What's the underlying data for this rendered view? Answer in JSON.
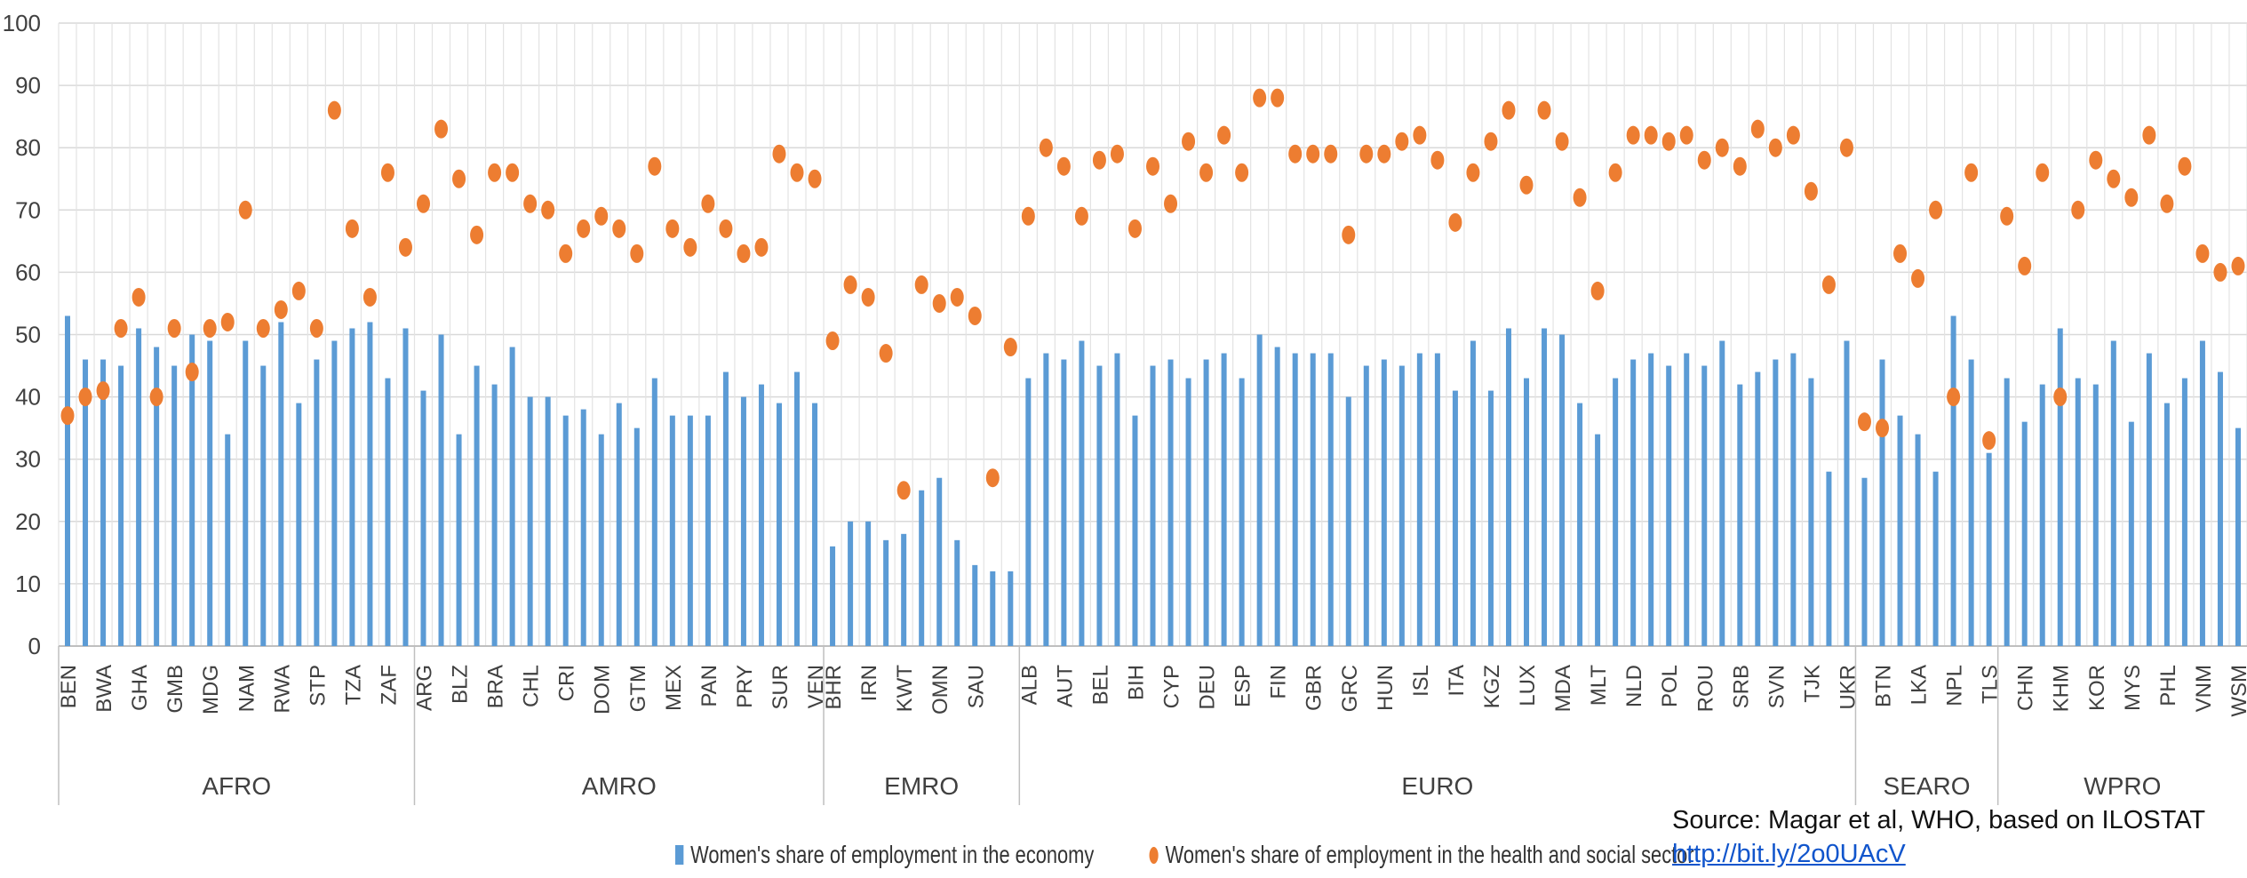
{
  "chart_data": {
    "type": "bar",
    "y_axis": {
      "ylim": [
        0,
        100
      ],
      "ticks": [
        "0",
        "10",
        "20",
        "30",
        "40",
        "50",
        "60",
        "70",
        "80",
        "90",
        "100"
      ],
      "grid": true
    },
    "groups": [
      {
        "name": "AFRO",
        "countries": [
          "BEN",
          "",
          "BWA",
          "",
          "GHA",
          "",
          "GMB",
          "",
          "MDG",
          "",
          "NAM",
          "",
          "RWA",
          "",
          "STP",
          "",
          "TZA",
          "",
          "ZAF",
          ""
        ],
        "economy": [
          53,
          46,
          46,
          45,
          51,
          48,
          45,
          50,
          49,
          34,
          49,
          45,
          52,
          39,
          46,
          49,
          51,
          52,
          43,
          51
        ],
        "health": [
          37,
          40,
          41,
          51,
          56,
          40,
          51,
          44,
          51,
          52,
          70,
          51,
          54,
          57,
          51,
          86,
          67,
          56,
          76,
          64
        ]
      },
      {
        "name": "AMRO",
        "countries": [
          "ARG",
          "",
          "BLZ",
          "",
          "BRA",
          "",
          "CHL",
          "",
          "CRI",
          "",
          "DOM",
          "",
          "GTM",
          "",
          "MEX",
          "",
          "PAN",
          "",
          "PRY",
          "",
          "SUR",
          "",
          "VEN"
        ],
        "economy": [
          41,
          50,
          34,
          45,
          42,
          48,
          40,
          40,
          37,
          38,
          34,
          39,
          35,
          43,
          37,
          37,
          37,
          44,
          40,
          42,
          39,
          44,
          39
        ],
        "health": [
          71,
          83,
          75,
          66,
          76,
          76,
          71,
          70,
          63,
          67,
          69,
          67,
          63,
          77,
          67,
          64,
          71,
          67,
          63,
          64,
          79,
          76,
          75
        ]
      },
      {
        "name": "EMRO",
        "countries": [
          "BHR",
          "",
          "IRN",
          "",
          "KWT",
          "",
          "OMN",
          "",
          "SAU",
          ""
        ],
        "economy": [
          16,
          20,
          20,
          17,
          18,
          25,
          27,
          17,
          13,
          12
        ],
        "health": [
          49,
          58,
          56,
          47,
          25,
          58,
          55,
          56,
          53,
          27
        ]
      },
      {
        "name": "EMRO-END",
        "countries": [
          ""
        ],
        "economy": [
          12
        ],
        "health": [
          48
        ]
      },
      {
        "name": "EURO",
        "countries": [
          "ALB",
          "",
          "AUT",
          "",
          "BEL",
          "",
          "BIH",
          "",
          "CYP",
          "",
          "DEU",
          "",
          "ESP",
          "",
          "FIN",
          "",
          "GBR",
          "",
          "GRC",
          "",
          "HUN",
          "",
          "ISL",
          "",
          "ITA",
          "",
          "KGZ",
          "",
          "LUX",
          "",
          "MDA",
          "",
          "MLT",
          "",
          "NLD",
          "",
          "POL",
          "",
          "ROU",
          "",
          "SRB",
          "",
          "SVN",
          "",
          "TJK",
          "",
          "UKR"
        ],
        "economy": [
          43,
          47,
          46,
          49,
          45,
          47,
          37,
          45,
          46,
          43,
          46,
          47,
          43,
          50,
          48,
          47,
          47,
          47,
          40,
          45,
          46,
          45,
          47,
          47,
          41,
          49,
          41,
          51,
          43,
          51,
          50,
          39,
          34,
          43,
          46,
          47,
          45,
          47,
          45,
          49,
          42,
          44,
          46,
          47,
          43,
          28,
          49
        ],
        "health": [
          69,
          80,
          77,
          69,
          78,
          79,
          67,
          77,
          71,
          81,
          76,
          82,
          76,
          88,
          88,
          79,
          79,
          79,
          66,
          79,
          79,
          81,
          82,
          78,
          68,
          76,
          81,
          86,
          74,
          86,
          81,
          72,
          57,
          76,
          82,
          82,
          81,
          82,
          78,
          80,
          77,
          83,
          80,
          82,
          73,
          58,
          80
        ]
      },
      {
        "name": "SEARO",
        "countries": [
          "",
          "BTN",
          "",
          "LKA",
          "",
          "NPL",
          "",
          "TLS"
        ],
        "economy": [
          27,
          46,
          37,
          34,
          28,
          53,
          46,
          31
        ],
        "health": [
          36,
          35,
          63,
          59,
          70,
          40,
          76,
          33
        ]
      },
      {
        "name": "WPRO",
        "countries": [
          "",
          "CHN",
          "",
          "KHM",
          "",
          "KOR",
          "",
          "MYS",
          "",
          "PHL",
          "",
          "VNM",
          "",
          "WSM"
        ],
        "economy": [
          43,
          36,
          42,
          51,
          43,
          42,
          49,
          36,
          47,
          39,
          43,
          49,
          44,
          35
        ],
        "health": [
          69,
          61,
          76,
          40,
          70,
          78,
          75,
          72,
          82,
          71,
          77,
          63,
          60,
          61
        ]
      }
    ],
    "group_labels": [
      "AFRO",
      "AMRO",
      "EMRO",
      "EURO",
      "SEARO",
      "WPRO"
    ],
    "series": [
      {
        "name": "Women's share of employment in the economy",
        "color": "#5b9bd5",
        "kind": "bar"
      },
      {
        "name": "Women's share of employment in the health and social sector",
        "color": "#ed7d31",
        "kind": "dot"
      }
    ]
  },
  "legend": {
    "economy": "Women's share of employment in the economy",
    "health": "Women's share of employment in the health and social sector"
  },
  "source": {
    "text": "Source: Magar et al, WHO, based on ILOSTAT",
    "link": "http://bit.ly/2o0UAcV"
  }
}
